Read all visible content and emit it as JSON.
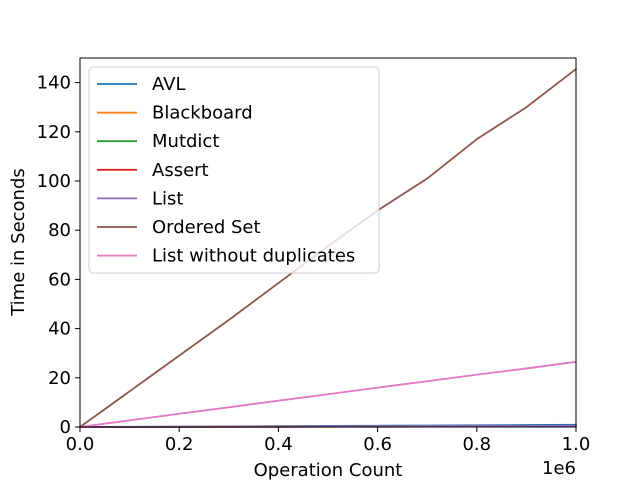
{
  "chart_data": {
    "type": "line",
    "title": "",
    "xlabel": "Operation Count",
    "ylabel": "Time in Seconds",
    "x_offset_label": "1e6",
    "xlim": [
      0,
      1.0
    ],
    "ylim": [
      0,
      150
    ],
    "x_ticks": [
      0.0,
      0.2,
      0.4,
      0.6,
      0.8,
      1.0
    ],
    "x_tick_labels": [
      "0.0",
      "0.2",
      "0.4",
      "0.6",
      "0.8",
      "1.0"
    ],
    "y_ticks": [
      0,
      20,
      40,
      60,
      80,
      100,
      120,
      140
    ],
    "y_tick_labels": [
      "0",
      "20",
      "40",
      "60",
      "80",
      "100",
      "120",
      "140"
    ],
    "grid": false,
    "legend_position": "top-left",
    "x": [
      0,
      0.1,
      0.2,
      0.3,
      0.4,
      0.5,
      0.6,
      0.7,
      0.8,
      0.9,
      1.0
    ],
    "series": [
      {
        "name": "AVL",
        "color": "#1f77b4",
        "values": [
          0,
          0.08,
          0.16,
          0.25,
          0.34,
          0.43,
          0.52,
          0.61,
          0.7,
          0.8,
          0.9
        ]
      },
      {
        "name": "Blackboard",
        "color": "#ff7f0e",
        "values": [
          0,
          0.04,
          0.08,
          0.12,
          0.16,
          0.2,
          0.24,
          0.28,
          0.32,
          0.36,
          0.4
        ]
      },
      {
        "name": "Mutdict",
        "color": "#2ca02c",
        "values": [
          0,
          0.03,
          0.06,
          0.09,
          0.12,
          0.15,
          0.18,
          0.21,
          0.24,
          0.27,
          0.3
        ]
      },
      {
        "name": "Assert",
        "color": "#d62728",
        "values": [
          0,
          0.02,
          0.04,
          0.06,
          0.08,
          0.1,
          0.12,
          0.14,
          0.16,
          0.18,
          0.2
        ]
      },
      {
        "name": "List",
        "color": "#9467bd",
        "values": [
          0,
          0.05,
          0.1,
          0.15,
          0.2,
          0.25,
          0.3,
          0.35,
          0.4,
          0.45,
          0.5
        ]
      },
      {
        "name": "Ordered Set",
        "color": "#8c564b",
        "values": [
          0,
          14.5,
          29,
          43.5,
          58.5,
          73.5,
          88,
          101,
          117,
          130,
          145.5
        ]
      },
      {
        "name": "List without duplicates",
        "color": "#e377c2",
        "values": [
          0,
          2.7,
          5.4,
          8.0,
          10.7,
          13.3,
          16.0,
          18.6,
          21.3,
          23.8,
          26.5
        ]
      }
    ]
  }
}
